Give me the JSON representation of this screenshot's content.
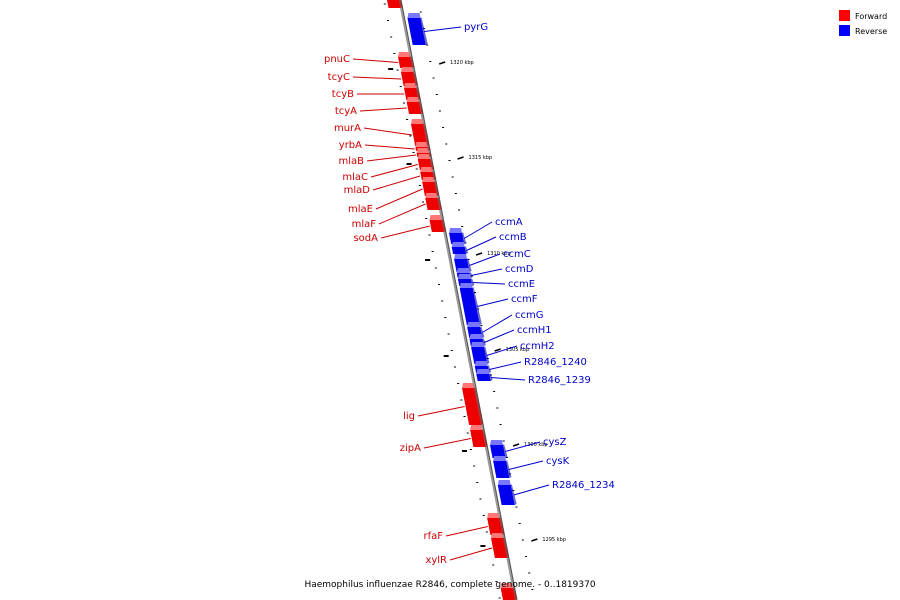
{
  "legend": {
    "forward_label": "Forward",
    "reverse_label": "Reverse",
    "forward_color": "#ff0000",
    "reverse_color": "#0000ff"
  },
  "caption": "Haemophilus influenzae R2846, complete genome. - 0..1819370",
  "ticks": [
    "1320 kbp",
    "1315 kbp",
    "1310 kbp",
    "1305 kbp",
    "1300 kbp",
    "1295 kbp"
  ],
  "genes": {
    "forward": [
      "pnuC",
      "tcyC",
      "tcyB",
      "tcyA",
      "murA",
      "yrbA",
      "mlaB",
      "mlaC",
      "mlaD",
      "mlaE",
      "mlaF",
      "sodA",
      "lig",
      "zipA",
      "rfaF",
      "xylR"
    ],
    "reverse": [
      "pyrG",
      "ccmA",
      "ccmB",
      "ccmC",
      "ccmD",
      "ccmE",
      "ccmF",
      "ccmG",
      "ccmH1",
      "ccmH2",
      "R2846_1240",
      "R2846_1239",
      "cysZ",
      "cysK",
      "R2846_1234"
    ]
  },
  "colors": {
    "backbone": "#888888",
    "forward_label": "#cc0000",
    "reverse_label": "#0000cc"
  }
}
